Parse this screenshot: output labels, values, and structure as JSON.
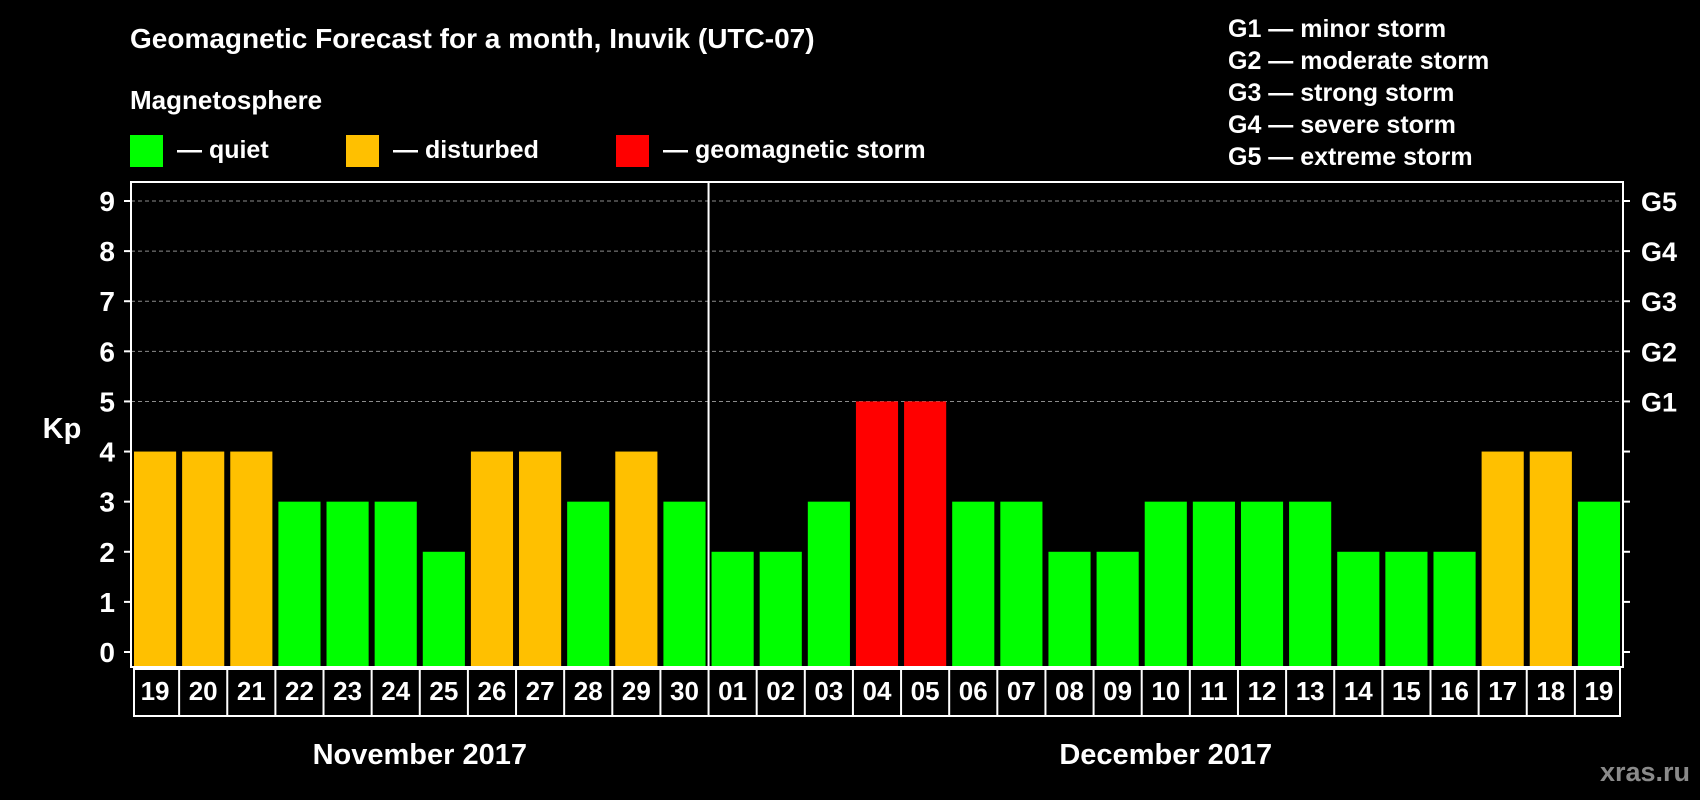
{
  "chart_data": {
    "type": "bar",
    "title": "Geomagnetic Forecast for a month, Inuvik (UTC-07)",
    "subtitle": "Magnetosphere",
    "legend": [
      {
        "label": "— quiet",
        "color": "#00ff00"
      },
      {
        "label": "— disturbed",
        "color": "#ffc000"
      },
      {
        "label": "— geomagnetic storm",
        "color": "#ff0000"
      }
    ],
    "storm_scale": [
      "G1 — minor storm",
      "G2 — moderate storm",
      "G3 — strong storm",
      "G4 — severe storm",
      "G5 — extreme storm"
    ],
    "ylabel": "Kp",
    "ylim": [
      0,
      9
    ],
    "yticks": [
      0,
      1,
      2,
      3,
      4,
      5,
      6,
      7,
      8,
      9
    ],
    "right_labels": [
      {
        "kp": 5,
        "label": "G1"
      },
      {
        "kp": 6,
        "label": "G2"
      },
      {
        "kp": 7,
        "label": "G3"
      },
      {
        "kp": 8,
        "label": "G4"
      },
      {
        "kp": 9,
        "label": "G5"
      }
    ],
    "categories": [
      "19",
      "20",
      "21",
      "22",
      "23",
      "24",
      "25",
      "26",
      "27",
      "28",
      "29",
      "30",
      "01",
      "02",
      "03",
      "04",
      "05",
      "06",
      "07",
      "08",
      "09",
      "10",
      "11",
      "12",
      "13",
      "14",
      "15",
      "16",
      "17",
      "18",
      "19"
    ],
    "values": [
      4,
      4,
      4,
      3,
      3,
      3,
      2,
      4,
      4,
      3,
      4,
      3,
      2,
      2,
      3,
      5,
      5,
      3,
      3,
      2,
      2,
      3,
      3,
      3,
      3,
      2,
      2,
      2,
      4,
      4,
      3
    ],
    "months": [
      {
        "label": "November 2017",
        "first_index": 0,
        "last_index": 11
      },
      {
        "label": "December 2017",
        "first_index": 12,
        "last_index": 30
      }
    ],
    "grid": "dashed horizontal lines at Kp 5–9"
  },
  "colors": {
    "quiet": "#00ff00",
    "disturbed": "#ffc000",
    "storm": "#ff0000"
  },
  "watermark": "xras.ru"
}
